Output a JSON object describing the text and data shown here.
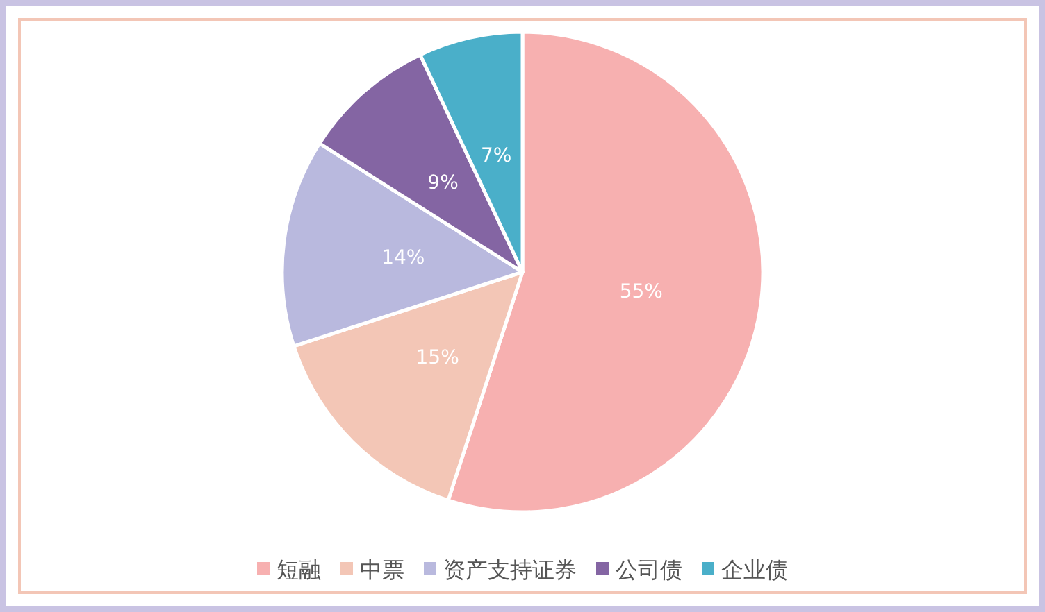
{
  "chart_data": {
    "type": "pie",
    "categories": [
      "短融",
      "中票",
      "资产支持证券",
      "公司债",
      "企业债"
    ],
    "values": [
      55,
      15,
      14,
      9,
      7
    ],
    "colors": [
      "#f7b0b0",
      "#f3c6b6",
      "#b9b9de",
      "#8465a3",
      "#4aafc9"
    ],
    "value_labels": [
      "55%",
      "15%",
      "14%",
      "9%",
      "7%"
    ],
    "legend": "bottom"
  }
}
